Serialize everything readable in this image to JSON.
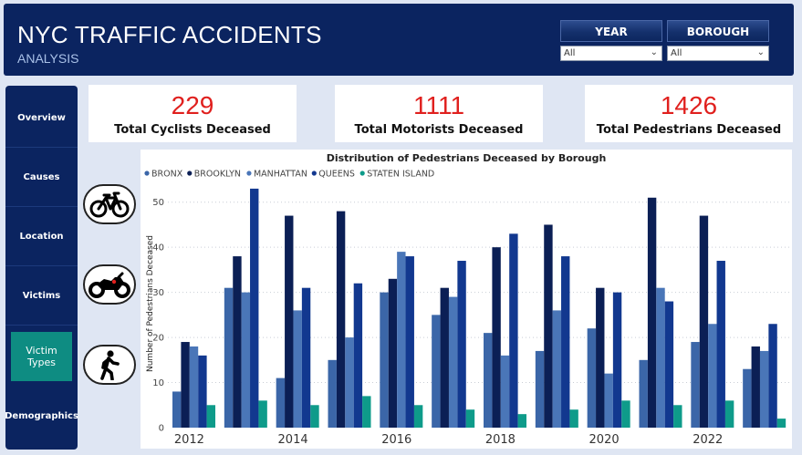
{
  "header": {
    "title": "NYC TRAFFIC ACCIDENTS",
    "subtitle": "ANALYSIS",
    "filters": [
      {
        "label": "YEAR",
        "value": "All"
      },
      {
        "label": "BOROUGH",
        "value": "All"
      }
    ]
  },
  "sidebar": {
    "items": [
      {
        "label": "Overview"
      },
      {
        "label": "Causes"
      },
      {
        "label": "Location"
      },
      {
        "label": "Victims"
      },
      {
        "label": "Victim Types",
        "active": true
      },
      {
        "label": "Demographics"
      }
    ]
  },
  "kpis": [
    {
      "value": "229",
      "label": "Total Cyclists Deceased"
    },
    {
      "value": "1111",
      "label": "Total Motorists Deceased"
    },
    {
      "value": "1426",
      "label": "Total Pedestrians Deceased"
    }
  ],
  "icons": [
    "bicycle-icon",
    "motorcycle-icon",
    "pedestrian-icon"
  ],
  "colors": {
    "header_bg": "#0b2460",
    "active_nav": "#0e8c82",
    "kpi_value": "#e0201e",
    "page_bg": "#dfe6f3"
  },
  "chart_data": {
    "type": "bar",
    "title": "Distribution of Pedestrians Deceased by Borough",
    "xlabel": "",
    "ylabel": "Number of Pedestrians Deceased",
    "ylim": [
      0,
      55
    ],
    "yticks": [
      0,
      10,
      20,
      30,
      40,
      50
    ],
    "categories": [
      2012,
      2013,
      2014,
      2015,
      2016,
      2017,
      2018,
      2019,
      2020,
      2021,
      2022,
      2023
    ],
    "xtick_labels": [
      "2012",
      "2014",
      "2016",
      "2018",
      "2020",
      "2022"
    ],
    "legend_position": "top-left",
    "grid": true,
    "series": [
      {
        "name": "BRONX",
        "color": "#3b66a8",
        "values": [
          8,
          31,
          11,
          15,
          30,
          25,
          21,
          17,
          22,
          15,
          19,
          13
        ]
      },
      {
        "name": "BROOKLYN",
        "color": "#0b1f55",
        "values": [
          19,
          38,
          47,
          48,
          33,
          31,
          40,
          45,
          31,
          51,
          47,
          18
        ]
      },
      {
        "name": "MANHATTAN",
        "color": "#4a76b8",
        "values": [
          18,
          30,
          26,
          20,
          39,
          29,
          16,
          26,
          12,
          31,
          23,
          17
        ]
      },
      {
        "name": "QUEENS",
        "color": "#12388f",
        "values": [
          16,
          53,
          31,
          32,
          38,
          37,
          43,
          38,
          30,
          28,
          37,
          23
        ]
      },
      {
        "name": "STATEN ISLAND",
        "color": "#0e9b8a",
        "values": [
          5,
          6,
          5,
          7,
          5,
          4,
          3,
          4,
          6,
          5,
          6,
          2
        ]
      }
    ]
  }
}
